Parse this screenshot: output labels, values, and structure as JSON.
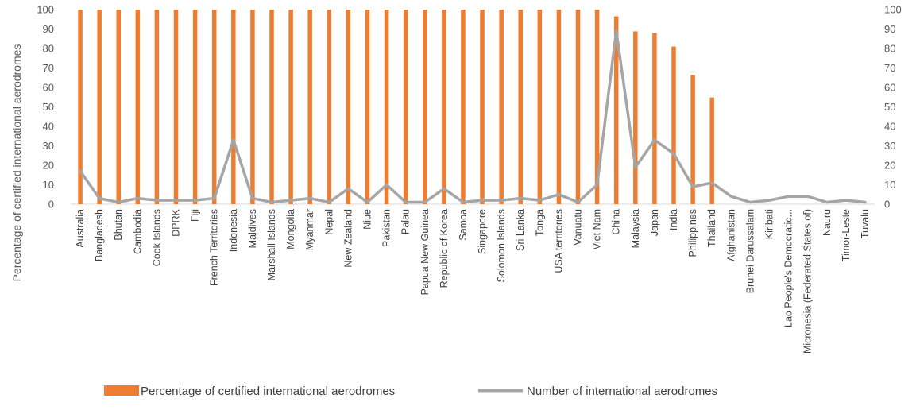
{
  "chart_data": {
    "type": "bar",
    "title": "",
    "ylabel": "Percentage of certified international aerodromes",
    "ylabel_right": "",
    "ylim": [
      0,
      100
    ],
    "ylim_right": [
      0,
      100
    ],
    "yticks": [
      0,
      10,
      20,
      30,
      40,
      50,
      60,
      70,
      80,
      90,
      100
    ],
    "grid": false,
    "legend_position": "bottom",
    "categories": [
      "Australia",
      "Bangladesh",
      "Bhutan",
      "Cambodia",
      "Cook Islands",
      "DPRK",
      "Fiji",
      "French Territories",
      "Indonesia",
      "Maldives",
      "Marshall Islands",
      "Mongolia",
      "Myanmar",
      "Nepal",
      "New Zealand",
      "Niue",
      "Pakistan",
      "Palau",
      "Papua New Guinea",
      "Republic of Korea",
      "Samoa",
      "Singapore",
      "Solomon Islands",
      "Sri Lanka",
      "Tonga",
      "USA territories",
      "Vanuatu",
      "Viet Nam",
      "China",
      "Malaysia",
      "Japan",
      "India",
      "Philippines",
      "Thailand",
      "Afghanistan",
      "Brunei Darussalam",
      "Kiribati",
      "Lao People's Democratic...",
      "Micronesia (Federated States of)",
      "Nauru",
      "Timor-Leste",
      "Tuvalu"
    ],
    "series": [
      {
        "name": "Percentage of certified international aerodromes",
        "type": "bar",
        "axis": "left",
        "color": "#ED7D31",
        "values": [
          100,
          100,
          100,
          100,
          100,
          100,
          100,
          100,
          100,
          100,
          100,
          100,
          100,
          100,
          100,
          100,
          100,
          100,
          100,
          100,
          100,
          100,
          100,
          100,
          100,
          100,
          100,
          100,
          96.5,
          88.8,
          88,
          81,
          66.5,
          54.8,
          0,
          0,
          0,
          0,
          0,
          0,
          0,
          0
        ]
      },
      {
        "name": "Number of international aerodromes",
        "type": "line",
        "axis": "right",
        "color": "#A5A5A5",
        "values": [
          17,
          3,
          1,
          3,
          2,
          2,
          2,
          3,
          33,
          3,
          1,
          2,
          3,
          1,
          8,
          1,
          10,
          1,
          1,
          8,
          1,
          2,
          2,
          3,
          2,
          5,
          1,
          10,
          89,
          19,
          33,
          26,
          9,
          11,
          4,
          1,
          2,
          4,
          4,
          1,
          2,
          1
        ]
      }
    ]
  }
}
